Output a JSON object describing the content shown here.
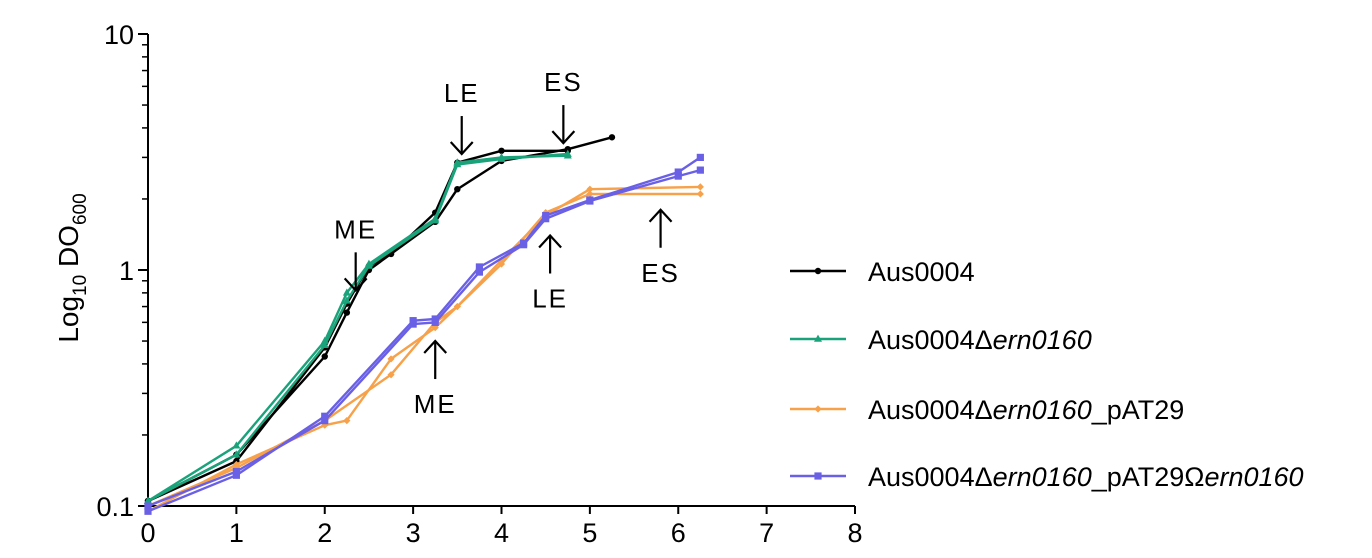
{
  "chart_data": {
    "type": "line",
    "ylabel": {
      "main": "Log",
      "sub1": "10",
      "mid": " DO",
      "sub2": "600"
    },
    "xlim": [
      0,
      8
    ],
    "ylim": [
      0.1,
      10
    ],
    "yscale": "log",
    "x_ticks": [
      "0",
      "1",
      "2",
      "3",
      "4",
      "5",
      "6",
      "7",
      "8"
    ],
    "y_ticks": [
      {
        "value": 0.1,
        "label": "0.1"
      },
      {
        "value": 1,
        "label": "1"
      },
      {
        "value": 10,
        "label": "10"
      }
    ],
    "grid": false,
    "legend_position": "right",
    "series": [
      {
        "name": "Aus0004",
        "name_italic": "",
        "color": "#000000",
        "marker": "circle",
        "replicates": [
          {
            "x": [
              0,
              1,
              2,
              2.25,
              2.5,
              2.75,
              3.25,
              3.5,
              4,
              4.75,
              5.25
            ],
            "y": [
              0.105,
              0.165,
              0.43,
              0.66,
              1.0,
              1.17,
              1.6,
              2.2,
              2.9,
              3.25,
              3.65
            ]
          },
          {
            "x": [
              0,
              1,
              2,
              2.25,
              2.5,
              2.75,
              3.25,
              3.5,
              4,
              4.75
            ],
            "y": [
              0.105,
              0.155,
              0.47,
              0.72,
              1.04,
              1.17,
              1.75,
              2.85,
              3.2,
              3.2
            ]
          }
        ]
      },
      {
        "name": "Aus0004Δ",
        "name_italic": "ern0160",
        "color": "#1aa37a",
        "marker": "triangle",
        "replicates": [
          {
            "x": [
              0,
              1,
              2,
              2.25,
              2.5,
              3.25,
              3.5,
              4,
              4.75
            ],
            "y": [
              0.105,
              0.18,
              0.5,
              0.8,
              1.06,
              1.65,
              2.85,
              3.0,
              3.05
            ]
          },
          {
            "x": [
              0,
              1,
              2,
              2.25,
              2.5,
              3.25,
              3.5,
              4,
              4.75
            ],
            "y": [
              0.105,
              0.165,
              0.48,
              0.74,
              1.04,
              1.62,
              2.8,
              2.95,
              3.1
            ]
          }
        ]
      },
      {
        "name": "Aus0004Δ",
        "name_italic": "ern0160",
        "name_suffix": "_pAT29",
        "color": "#f7a14a",
        "marker": "diamond",
        "replicates": [
          {
            "x": [
              0,
              1,
              2,
              2.25,
              2.75,
              3.25,
              3.5,
              4,
              4.5,
              5,
              6.25
            ],
            "y": [
              0.095,
              0.15,
              0.22,
              0.23,
              0.42,
              0.57,
              0.7,
              1.1,
              1.7,
              2.2,
              2.25
            ]
          },
          {
            "x": [
              0,
              1,
              2,
              2.75,
              3.25,
              3.5,
              4,
              4.5,
              5,
              6.25
            ],
            "y": [
              0.1,
              0.145,
              0.23,
              0.36,
              0.6,
              0.7,
              1.06,
              1.75,
              2.1,
              2.1
            ]
          }
        ]
      },
      {
        "name": "Aus0004Δ",
        "name_italic": "ern0160",
        "name_suffix": "_pAT29Ω",
        "name_italic2": "ern0160",
        "color": "#6a60e6",
        "marker": "square",
        "replicates": [
          {
            "x": [
              0,
              1,
              2,
              3,
              3.25,
              3.75,
              4.25,
              4.5,
              5,
              6,
              6.25
            ],
            "y": [
              0.095,
              0.135,
              0.24,
              0.61,
              0.62,
              1.03,
              1.3,
              1.7,
              1.98,
              2.6,
              3.0
            ]
          },
          {
            "x": [
              0,
              1,
              2,
              3,
              3.25,
              3.75,
              4.25,
              4.5,
              5,
              6,
              6.25
            ],
            "y": [
              0.1,
              0.14,
              0.23,
              0.59,
              0.6,
              0.98,
              1.28,
              1.65,
              1.96,
              2.5,
              2.65
            ]
          }
        ]
      }
    ],
    "annotations": [
      {
        "text": "ME",
        "x": 2.35,
        "y": 0.82,
        "direction": "down"
      },
      {
        "text": "LE",
        "x": 3.55,
        "y": 3.1,
        "direction": "down"
      },
      {
        "text": "ES",
        "x": 4.7,
        "y": 3.45,
        "direction": "down"
      },
      {
        "text": "ME",
        "x": 3.25,
        "y": 0.5,
        "direction": "up"
      },
      {
        "text": "LE",
        "x": 4.55,
        "y": 1.4,
        "direction": "up"
      },
      {
        "text": "ES",
        "x": 5.8,
        "y": 1.8,
        "direction": "up"
      }
    ]
  }
}
